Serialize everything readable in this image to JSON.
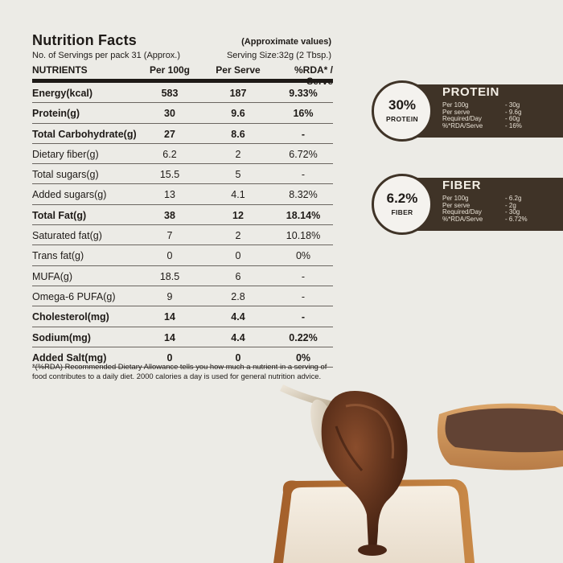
{
  "nutrition": {
    "title": "Nutrition Facts",
    "approx_note": "(Approximate values)",
    "servings_per_pack": "No. of Servings per pack 31 (Approx.)",
    "serving_size": "Serving Size:32g (2 Tbsp.)",
    "headers": [
      "NUTRIENTS",
      "Per 100g",
      "Per Serve",
      "%RDA* / Serve"
    ],
    "rows": [
      {
        "name": "Energy(kcal)",
        "per100": "583",
        "perserve": "187",
        "rda": "9.33%",
        "bold": true
      },
      {
        "name": "Protein(g)",
        "per100": "30",
        "perserve": "9.6",
        "rda": "16%",
        "bold": true
      },
      {
        "name": "Total Carbohydrate(g)",
        "per100": "27",
        "perserve": "8.6",
        "rda": "-",
        "bold": true
      },
      {
        "name": "Dietary fiber(g)",
        "per100": "6.2",
        "perserve": "2",
        "rda": "6.72%",
        "bold": false
      },
      {
        "name": "Total sugars(g)",
        "per100": "15.5",
        "perserve": "5",
        "rda": "-",
        "bold": false
      },
      {
        "name": "Added sugars(g)",
        "per100": "13",
        "perserve": "4.1",
        "rda": "8.32%",
        "bold": false
      },
      {
        "name": "Total Fat(g)",
        "per100": "38",
        "perserve": "12",
        "rda": "18.14%",
        "bold": true
      },
      {
        "name": "Saturated fat(g)",
        "per100": "7",
        "perserve": "2",
        "rda": "10.18%",
        "bold": false
      },
      {
        "name": "Trans fat(g)",
        "per100": "0",
        "perserve": "0",
        "rda": "0%",
        "bold": false
      },
      {
        "name": "MUFA(g)",
        "per100": "18.5",
        "perserve": "6",
        "rda": "-",
        "bold": false
      },
      {
        "name": "Omega-6 PUFA(g)",
        "per100": "9",
        "perserve": "2.8",
        "rda": "-",
        "bold": false
      },
      {
        "name": "Cholesterol(mg)",
        "per100": "14",
        "perserve": "4.4",
        "rda": "-",
        "bold": true
      },
      {
        "name": "Sodium(mg)",
        "per100": "14",
        "perserve": "4.4",
        "rda": "0.22%",
        "bold": true
      },
      {
        "name": "Added Salt(mg)",
        "per100": "0",
        "perserve": "0",
        "rda": "0%",
        "bold": true
      }
    ],
    "footnote": "*(%RDA) Recommended Dietary Allowance tells you how much a nutrient in a serving of food contributes to a daily diet. 2000 calories a day is used for general nutrition advice."
  },
  "badges": [
    {
      "percent": "30%",
      "circle_label": "PROTEIN",
      "title": "PROTEIN",
      "details": [
        {
          "label": "Per 100g",
          "value": "- 30g"
        },
        {
          "label": "Per serve",
          "value": "- 9.6g"
        },
        {
          "label": "Required/Day",
          "value": "- 60g"
        },
        {
          "label": "%*RDA/Serve",
          "value": "- 16%"
        }
      ]
    },
    {
      "percent": "6.2%",
      "circle_label": "FIBER",
      "title": "FIBER",
      "details": [
        {
          "label": "Per 100g",
          "value": "- 6.2g"
        },
        {
          "label": "Per serve",
          "value": "- 2g"
        },
        {
          "label": "Required/Day",
          "value": "- 30g"
        },
        {
          "label": "%*RDA/Serve",
          "value": "- 6.72%"
        }
      ]
    }
  ],
  "colors": {
    "background": "#ecebe6",
    "badge_brown": "#3f3327",
    "text_dark": "#1e1a17",
    "spread_brown": "#5a2f1a"
  }
}
